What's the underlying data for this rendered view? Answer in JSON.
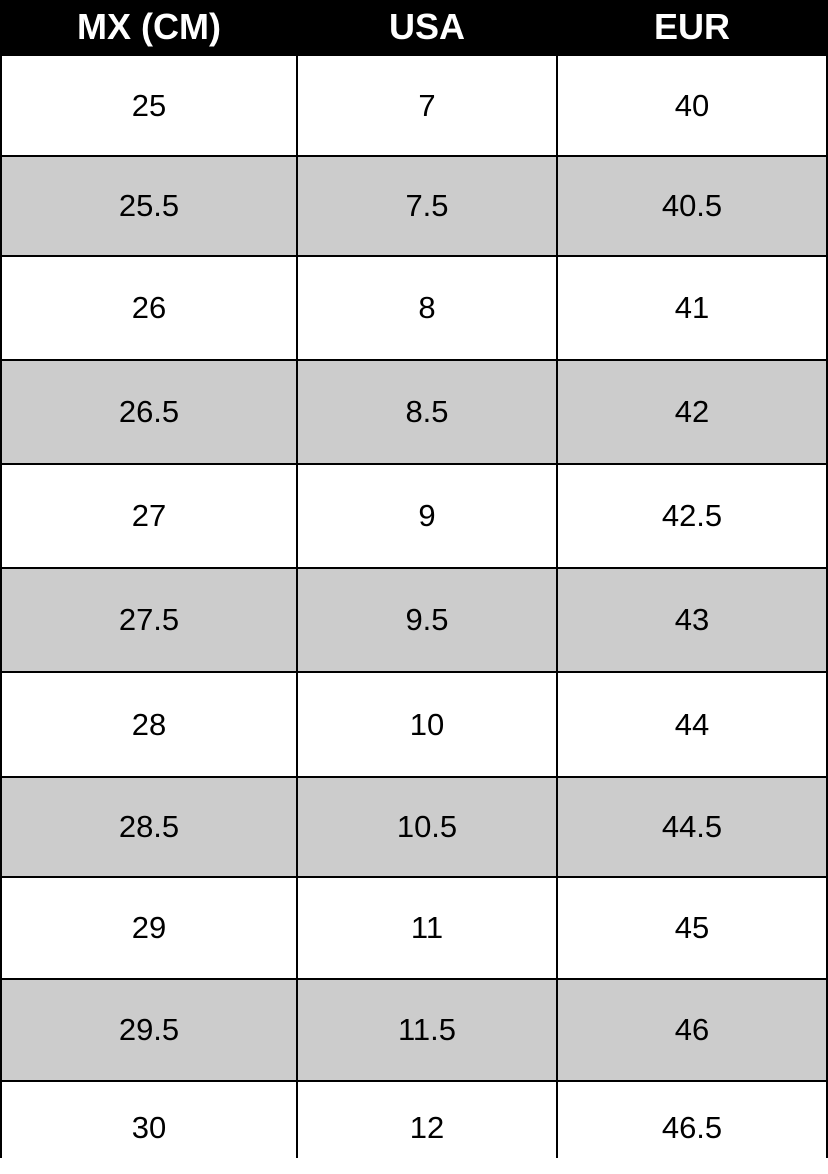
{
  "headers": [
    "MX (CM)",
    "USA",
    "EUR"
  ],
  "rows": [
    [
      "25",
      "7",
      "40"
    ],
    [
      "25.5",
      "7.5",
      "40.5"
    ],
    [
      "26",
      "8",
      "41"
    ],
    [
      "26.5",
      "8.5",
      "42"
    ],
    [
      "27",
      "9",
      "42.5"
    ],
    [
      "27.5",
      "9.5",
      "43"
    ],
    [
      "28",
      "10",
      "44"
    ],
    [
      "28.5",
      "10.5",
      "44.5"
    ],
    [
      "29",
      "11",
      "45"
    ],
    [
      "29.5",
      "11.5",
      "46"
    ],
    [
      "30",
      "12",
      "46.5"
    ]
  ],
  "colors": {
    "header_bg": "#000000",
    "header_text": "#ffffff",
    "stripe": "#cccccc",
    "row": "#ffffff",
    "border": "#000000"
  }
}
